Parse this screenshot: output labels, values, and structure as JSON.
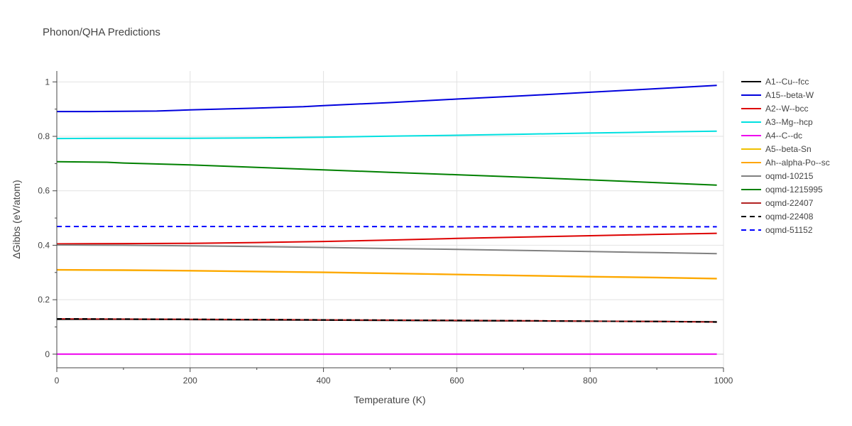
{
  "title": "Phonon/QHA Predictions",
  "chart_data": {
    "type": "line",
    "xlabel": "Temperature (K)",
    "ylabel": "ΔGibbs (eV/atom)",
    "xlim": [
      0,
      1000
    ],
    "ylim": [
      -0.05,
      1.04
    ],
    "xticks": [
      0,
      200,
      400,
      600,
      800,
      1000
    ],
    "yticks": [
      0,
      0.2,
      0.4,
      0.6,
      0.8,
      1
    ],
    "grid": true,
    "legend_position": "right",
    "series": [
      {
        "name": "A1--Cu--fcc",
        "color": "#000000",
        "dash": "solid",
        "x": [
          0,
          100,
          200,
          300,
          400,
          500,
          600,
          700,
          800,
          900,
          990
        ],
        "y": [
          0.128,
          0.128,
          0.127,
          0.126,
          0.125,
          0.124,
          0.123,
          0.122,
          0.121,
          0.12,
          0.119
        ]
      },
      {
        "name": "A15--beta-W",
        "color": "#0000dd",
        "dash": "solid",
        "x": [
          0,
          50,
          100,
          150,
          200,
          300,
          370,
          400,
          500,
          600,
          700,
          800,
          900,
          990
        ],
        "y": [
          0.891,
          0.891,
          0.892,
          0.893,
          0.897,
          0.904,
          0.909,
          0.913,
          0.924,
          0.937,
          0.949,
          0.962,
          0.975,
          0.987
        ]
      },
      {
        "name": "A2--W--bcc",
        "color": "#dd0000",
        "dash": "solid",
        "x": [
          0,
          100,
          200,
          300,
          400,
          500,
          600,
          700,
          800,
          900,
          990
        ],
        "y": [
          0.405,
          0.406,
          0.407,
          0.41,
          0.414,
          0.419,
          0.425,
          0.43,
          0.435,
          0.44,
          0.444
        ]
      },
      {
        "name": "A3--Mg--hcp",
        "color": "#00e0e0",
        "dash": "solid",
        "x": [
          0,
          100,
          200,
          300,
          400,
          500,
          600,
          700,
          800,
          900,
          990
        ],
        "y": [
          0.792,
          0.793,
          0.793,
          0.794,
          0.797,
          0.801,
          0.804,
          0.808,
          0.812,
          0.816,
          0.819
        ]
      },
      {
        "name": "A4--C--dc",
        "color": "#ee00ee",
        "dash": "solid",
        "x": [
          0,
          500,
          990
        ],
        "y": [
          0.0,
          0.0,
          0.0
        ]
      },
      {
        "name": "A5--beta-Sn",
        "color": "#f0c000",
        "dash": "solid",
        "x": [
          0,
          100,
          200,
          300,
          400,
          500,
          600,
          700,
          800,
          900,
          990
        ],
        "y": [
          0.309,
          0.308,
          0.306,
          0.303,
          0.3,
          0.296,
          0.292,
          0.288,
          0.284,
          0.281,
          0.277
        ]
      },
      {
        "name": "Ah--alpha-Po--sc",
        "color": "#ffa500",
        "dash": "solid",
        "x": [
          0,
          100,
          200,
          300,
          400,
          500,
          600,
          700,
          800,
          900,
          990
        ],
        "y": [
          0.31,
          0.309,
          0.307,
          0.304,
          0.301,
          0.297,
          0.293,
          0.289,
          0.285,
          0.282,
          0.278
        ]
      },
      {
        "name": "oqmd-10215",
        "color": "#808080",
        "dash": "solid",
        "x": [
          0,
          100,
          200,
          300,
          400,
          500,
          600,
          700,
          800,
          900,
          990
        ],
        "y": [
          0.401,
          0.4,
          0.398,
          0.395,
          0.392,
          0.388,
          0.385,
          0.381,
          0.377,
          0.373,
          0.369
        ]
      },
      {
        "name": "oqmd-1215995",
        "color": "#008000",
        "dash": "solid",
        "x": [
          0,
          75,
          100,
          200,
          300,
          400,
          500,
          600,
          700,
          800,
          900,
          990
        ],
        "y": [
          0.707,
          0.705,
          0.702,
          0.695,
          0.686,
          0.677,
          0.668,
          0.659,
          0.65,
          0.64,
          0.63,
          0.621
        ]
      },
      {
        "name": "oqmd-22407",
        "color": "#b22222",
        "dash": "solid",
        "x": [
          0,
          100,
          200,
          300,
          400,
          500,
          600,
          700,
          800,
          900,
          990
        ],
        "y": [
          0.13,
          0.129,
          0.128,
          0.127,
          0.126,
          0.125,
          0.124,
          0.123,
          0.121,
          0.12,
          0.118
        ]
      },
      {
        "name": "oqmd-22408",
        "color": "#000000",
        "dash": "dash",
        "x": [
          0,
          100,
          200,
          300,
          400,
          500,
          600,
          700,
          800,
          900,
          990
        ],
        "y": [
          0.13,
          0.129,
          0.128,
          0.127,
          0.126,
          0.125,
          0.124,
          0.123,
          0.121,
          0.12,
          0.118
        ]
      },
      {
        "name": "oqmd-51152",
        "color": "#0000ff",
        "dash": "dash",
        "x": [
          0,
          200,
          400,
          600,
          800,
          990
        ],
        "y": [
          0.469,
          0.469,
          0.469,
          0.468,
          0.468,
          0.468
        ]
      }
    ]
  }
}
